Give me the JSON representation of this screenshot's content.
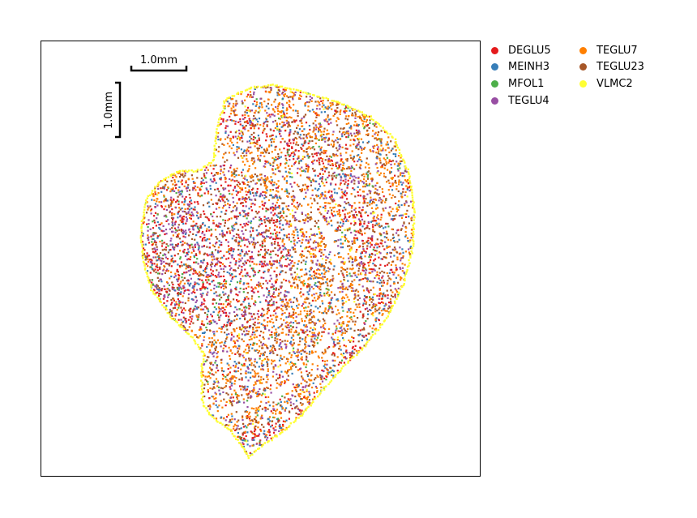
{
  "chart_data": {
    "type": "scatter",
    "title": "",
    "xlabel": "",
    "ylabel": "",
    "grid": false,
    "legend_placement": "outside-top-right",
    "scalebar": {
      "horizontal_label": "1.0mm",
      "vertical_label": "1.0mm"
    },
    "series": [
      {
        "name": "DEGLU5",
        "color": "#e41a1c"
      },
      {
        "name": "MEINH3",
        "color": "#377eb8"
      },
      {
        "name": "MFOL1",
        "color": "#4daf4a"
      },
      {
        "name": "TEGLU4",
        "color": "#984ea3"
      },
      {
        "name": "TEGLU7",
        "color": "#ff7f00"
      },
      {
        "name": "TEGLU23",
        "color": "#a65628"
      },
      {
        "name": "VLMC2",
        "color": "#ffff33"
      }
    ]
  }
}
